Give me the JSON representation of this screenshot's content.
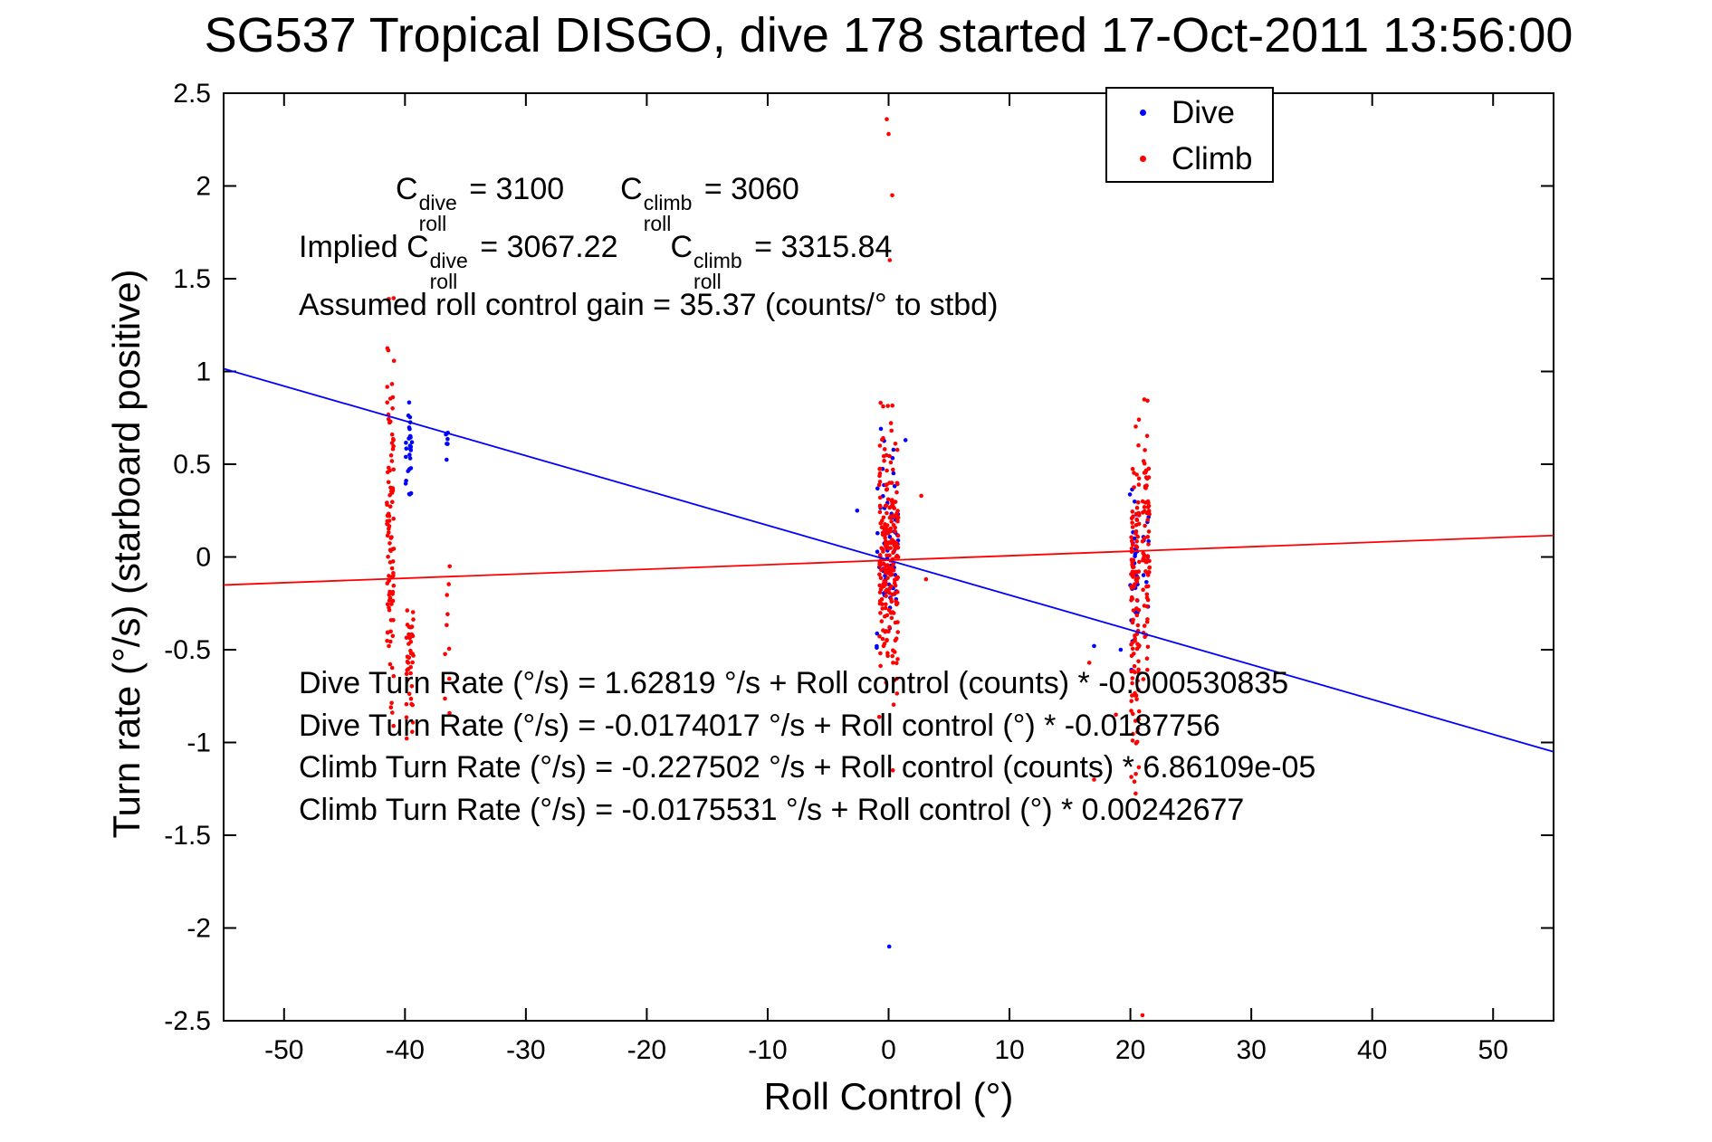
{
  "title": "SG537 Tropical DISGO, dive 178 started 17-Oct-2011 13:56:00",
  "legend": {
    "items": [
      {
        "label": "Dive",
        "color": "#0000ff"
      },
      {
        "label": "Climb",
        "color": "#ff0000"
      }
    ]
  },
  "annotations": {
    "coeff1": {
      "c1": "C",
      "sup1": "dive",
      "sub1": "roll",
      "eq1": " = 3100",
      "c2": "C",
      "sup2": "climb",
      "sub2": "roll",
      "eq2": " = 3060"
    },
    "coeff2": {
      "prefix": "Implied ",
      "c1": "C",
      "sup1": "dive",
      "sub1": "roll",
      "eq1": " = 3067.22",
      "c2": "C",
      "sup2": "climb",
      "sub2": "roll",
      "eq2": " = 3315.84"
    },
    "gain": "Assumed roll control gain = 35.37 (counts/° to stbd)",
    "fit_equations": [
      "Dive Turn Rate (°/s) = 1.62819 °/s + Roll control (counts) * -0.000530835",
      "Dive Turn Rate (°/s) = -0.0174017 °/s + Roll control (°) * -0.0187756",
      "Climb Turn Rate (°/s) = -0.227502 °/s + Roll control (counts) * 6.86109e-05",
      "Climb Turn Rate (°/s) = -0.0175531 °/s + Roll control (°) * 0.00242677"
    ]
  },
  "chart_data": {
    "type": "scatter",
    "title": "SG537 Tropical DISGO, dive 178 started 17-Oct-2011 13:56:00",
    "xlabel": "Roll Control (°)",
    "ylabel": "Turn rate (°/s) (starboard positive)",
    "xlim": [
      -55,
      55
    ],
    "ylim": [
      -2.5,
      2.5
    ],
    "xticks": [
      -50,
      -40,
      -30,
      -20,
      -10,
      0,
      10,
      20,
      30,
      40,
      50
    ],
    "yticks": [
      -2.5,
      -2,
      -1.5,
      -1,
      -0.5,
      0,
      0.5,
      1,
      1.5,
      2,
      2.5
    ],
    "grid": false,
    "legend_position": "top-right-inside",
    "series": [
      {
        "name": "Dive",
        "color": "#0000ff",
        "marker": "dot",
        "clusters": [
          {
            "x": -39.7,
            "x_jitter": 0.3,
            "y_mean": 0.62,
            "y_std": 0.17,
            "y_min": 0.28,
            "y_max": 0.97,
            "n": 28
          },
          {
            "x": -36.6,
            "x_jitter": 0.15,
            "y_mean": 0.63,
            "y_std": 0.1,
            "y_min": 0.45,
            "y_max": 0.78,
            "n": 6
          },
          {
            "x": -0.1,
            "x_jitter": 0.9,
            "y_mean": 0.08,
            "y_std": 0.28,
            "y_min": -0.55,
            "y_max": 0.8,
            "n": 55
          },
          {
            "x": 20.3,
            "x_jitter": 0.35,
            "y_mean": -0.18,
            "y_std": 0.28,
            "y_min": -0.68,
            "y_max": 0.42,
            "n": 26
          },
          {
            "x": 21.3,
            "x_jitter": 0.25,
            "y_mean": 0.0,
            "y_std": 0.18,
            "y_min": -0.35,
            "y_max": 0.35,
            "n": 10
          }
        ],
        "extra_points": [
          [
            0.05,
            -2.1
          ],
          [
            1.4,
            0.63
          ],
          [
            -2.6,
            0.25
          ],
          [
            17.0,
            -0.48
          ],
          [
            19.2,
            -0.5
          ]
        ]
      },
      {
        "name": "Climb",
        "color": "#ff0000",
        "marker": "dot",
        "clusters": [
          {
            "x": -41.2,
            "x_jitter": 0.3,
            "y_mean": 0.15,
            "y_std": 0.55,
            "y_min": -1.05,
            "y_max": 1.72,
            "n": 95
          },
          {
            "x": -39.6,
            "x_jitter": 0.3,
            "y_mean": -0.62,
            "y_std": 0.18,
            "y_min": -0.98,
            "y_max": -0.25,
            "n": 40
          },
          {
            "x": -36.5,
            "x_jitter": 0.2,
            "y_mean": -0.5,
            "y_std": 0.25,
            "y_min": -0.88,
            "y_max": -0.05,
            "n": 9
          },
          {
            "x": 0.0,
            "x_jitter": 0.8,
            "y_mean": 0.05,
            "y_std": 0.33,
            "y_min": -0.97,
            "y_max": 0.87,
            "n": 230
          },
          {
            "x": 20.4,
            "x_jitter": 0.35,
            "y_mean": -0.25,
            "y_std": 0.45,
            "y_min": -1.33,
            "y_max": 0.82,
            "n": 120
          },
          {
            "x": 21.3,
            "x_jitter": 0.3,
            "y_mean": 0.12,
            "y_std": 0.35,
            "y_min": -0.78,
            "y_max": 0.85,
            "n": 75
          }
        ],
        "extra_points": [
          [
            -0.15,
            2.36
          ],
          [
            0.0,
            2.28
          ],
          [
            0.3,
            1.95
          ],
          [
            0.1,
            1.6
          ],
          [
            0.35,
            -1.15
          ],
          [
            2.7,
            0.33
          ],
          [
            3.1,
            -0.12
          ],
          [
            17.0,
            -1.2
          ],
          [
            16.6,
            -0.57
          ],
          [
            18.8,
            -0.85
          ],
          [
            21.0,
            -2.47
          ],
          [
            -36.3,
            -0.05
          ]
        ]
      }
    ],
    "fit_lines": [
      {
        "name": "dive-fit",
        "color": "#0000ff",
        "intercept": -0.0174017,
        "slope": -0.0187756
      },
      {
        "name": "climb-fit",
        "color": "#ff0000",
        "intercept": -0.0175531,
        "slope": 0.00242677
      }
    ]
  }
}
